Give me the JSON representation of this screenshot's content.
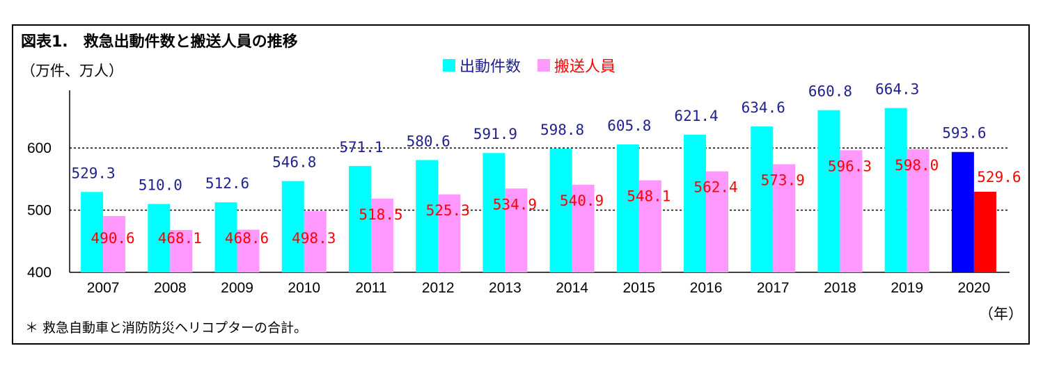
{
  "title": "図表1.　救急出動件数と搬送人員の推移",
  "unit_label": "（万件、万人）",
  "x_unit_label": "（年）",
  "note": "＊ 救急自動車と消防防災ヘリコプターの合計。",
  "chart_data": {
    "type": "bar",
    "categories": [
      "2007",
      "2008",
      "2009",
      "2010",
      "2011",
      "2012",
      "2013",
      "2014",
      "2015",
      "2016",
      "2017",
      "2018",
      "2019",
      "2020"
    ],
    "series": [
      {
        "name": "出動件数",
        "color": "#00FFFF",
        "highlight_color": "#0000FF",
        "label_color": "#1F1F8F",
        "values": [
          529.3,
          510.0,
          512.6,
          546.8,
          571.1,
          580.6,
          591.9,
          598.8,
          605.8,
          621.4,
          634.6,
          660.8,
          664.3,
          593.6
        ],
        "labels": [
          "529.3",
          "510.0",
          "512.6",
          "546.8",
          "571.1",
          "580.6",
          "591.9",
          "598.8",
          "605.8",
          "621.4",
          "634.6",
          "660.8",
          "664.3",
          "593.6"
        ]
      },
      {
        "name": "搬送人員",
        "color": "#FF99FF",
        "highlight_color": "#FF0000",
        "label_color": "#FF0000",
        "values": [
          490.6,
          468.1,
          468.6,
          498.3,
          518.5,
          525.3,
          534.9,
          540.9,
          548.1,
          562.4,
          573.9,
          596.3,
          598.0,
          529.6
        ],
        "labels": [
          "490.6",
          "468.1",
          "468.6",
          "498.3",
          "518.5",
          "525.3",
          "534.9",
          "540.9",
          "548.1",
          "562.4",
          "573.9",
          "596.3",
          "598.0",
          "529.6"
        ]
      }
    ],
    "highlight_category": "2020",
    "ylim": [
      400,
      700
    ],
    "yticks": [
      400,
      500,
      600
    ],
    "gridlines": [
      500,
      600
    ],
    "legend_position": "top-center"
  }
}
